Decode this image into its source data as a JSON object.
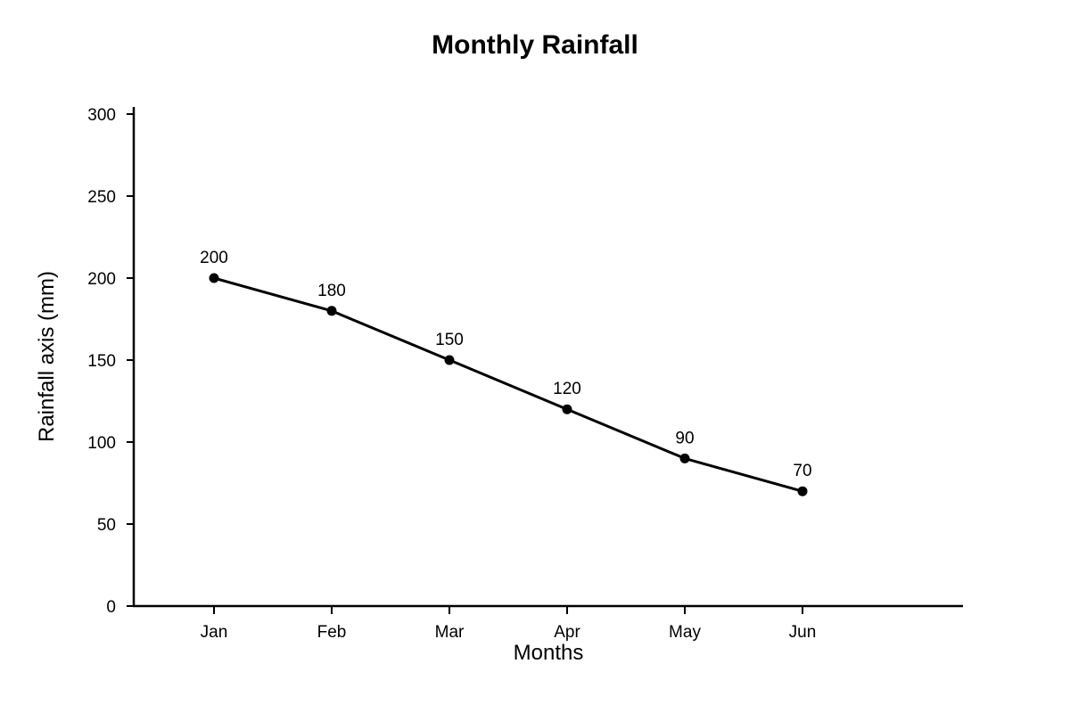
{
  "chart_data": {
    "type": "line",
    "title": "Monthly Rainfall",
    "xlabel": "Months",
    "ylabel": "Rainfall axis (mm)",
    "categories": [
      "Jan",
      "Feb",
      "Mar",
      "Apr",
      "May",
      "Jun"
    ],
    "series": [
      {
        "values": [
          200,
          180,
          150,
          120,
          90,
          70
        ]
      }
    ],
    "data_labels": [
      "200",
      "180",
      "150",
      "120",
      "90",
      "70"
    ],
    "y_ticks": [
      0,
      50,
      100,
      150,
      200,
      250,
      300
    ],
    "ylim": [
      0,
      300
    ],
    "grid": false,
    "legend": "none",
    "colors": {
      "line": "#000000",
      "marker": "#000000",
      "axis": "#000000"
    }
  }
}
